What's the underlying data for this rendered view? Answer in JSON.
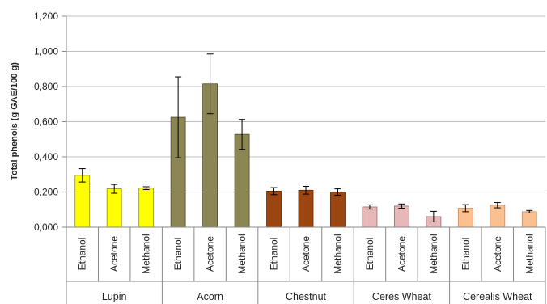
{
  "chart_data": {
    "type": "bar",
    "title": "",
    "xlabel": "",
    "ylabel": "Total phenols (g GAE/100 g)",
    "ylim": [
      0,
      1.2
    ],
    "yticks": [
      "0,000",
      "0,200",
      "0,400",
      "0,600",
      "0,800",
      "1,000",
      "1,200"
    ],
    "yticks_values": [
      0,
      0.2,
      0.4,
      0.6,
      0.8,
      1.0,
      1.2
    ],
    "grid": true,
    "legend": "none",
    "groups": [
      {
        "name": "Lupin",
        "color": "#ffff00",
        "categories": [
          "Ethanol",
          "Acetone",
          "Methanol"
        ],
        "values": [
          0.295,
          0.218,
          0.222
        ],
        "errors": [
          0.038,
          0.025,
          0.008
        ]
      },
      {
        "name": "Acorn",
        "color": "#8b8653",
        "categories": [
          "Ethanol",
          "Acetone",
          "Methanol"
        ],
        "values": [
          0.625,
          0.815,
          0.528
        ],
        "errors": [
          0.23,
          0.17,
          0.085
        ]
      },
      {
        "name": "Chestnut",
        "color": "#9b4511",
        "categories": [
          "Ethanol",
          "Acetone",
          "Methanol"
        ],
        "values": [
          0.205,
          0.21,
          0.2
        ],
        "errors": [
          0.02,
          0.022,
          0.018
        ]
      },
      {
        "name": "Ceres Wheat",
        "color": "#e6b8b7",
        "categories": [
          "Ethanol",
          "Acetone",
          "Methanol"
        ],
        "values": [
          0.115,
          0.12,
          0.06
        ],
        "errors": [
          0.012,
          0.012,
          0.03
        ]
      },
      {
        "name": "Cerealis Wheat",
        "color": "#fac090",
        "categories": [
          "Ethanol",
          "Acetone",
          "Methanol"
        ],
        "values": [
          0.108,
          0.125,
          0.088
        ],
        "errors": [
          0.02,
          0.015,
          0.007
        ]
      }
    ]
  }
}
